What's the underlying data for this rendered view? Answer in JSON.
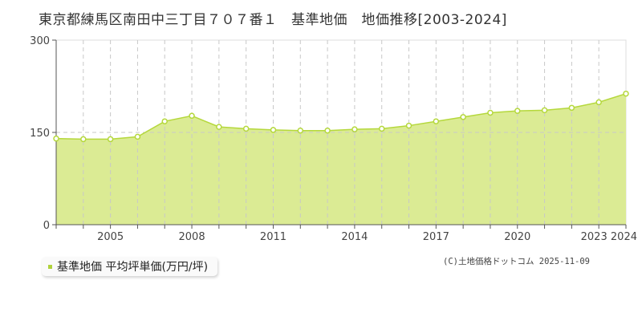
{
  "title": "東京都練馬区南田中三丁目７０７番１　基準地価　地価推移[2003-2024]",
  "legend": {
    "label": "基準地価 平均坪単価(万円/坪)",
    "color": "#b0d23c"
  },
  "credit": "(C)土地価格ドットコム 2025-11-09",
  "colors": {
    "line": "#b5d83c",
    "fill": "#dbeb94",
    "grid": "#c8c8c8",
    "axis": "#555555"
  },
  "chart_data": {
    "type": "area",
    "title": "東京都練馬区南田中三丁目７０７番１　基準地価　地価推移[2003-2024]",
    "xlabel": "",
    "ylabel": "",
    "ylim": [
      0,
      300
    ],
    "yticks": [
      0,
      150,
      300
    ],
    "xtick_labels": [
      "2005",
      "2008",
      "2011",
      "2014",
      "2017",
      "2020",
      "2023",
      "2024"
    ],
    "grid": true,
    "legend_position": "bottom-left",
    "x": [
      2003,
      2004,
      2005,
      2006,
      2007,
      2008,
      2009,
      2010,
      2011,
      2012,
      2013,
      2014,
      2015,
      2016,
      2017,
      2018,
      2019,
      2020,
      2021,
      2022,
      2023,
      2024
    ],
    "series": [
      {
        "name": "基準地価 平均坪単価(万円/坪)",
        "values": [
          140,
          139,
          139,
          143,
          168,
          177,
          159,
          156,
          154,
          153,
          153,
          155,
          156,
          161,
          168,
          175,
          182,
          185,
          186,
          190,
          199,
          213
        ]
      }
    ]
  }
}
